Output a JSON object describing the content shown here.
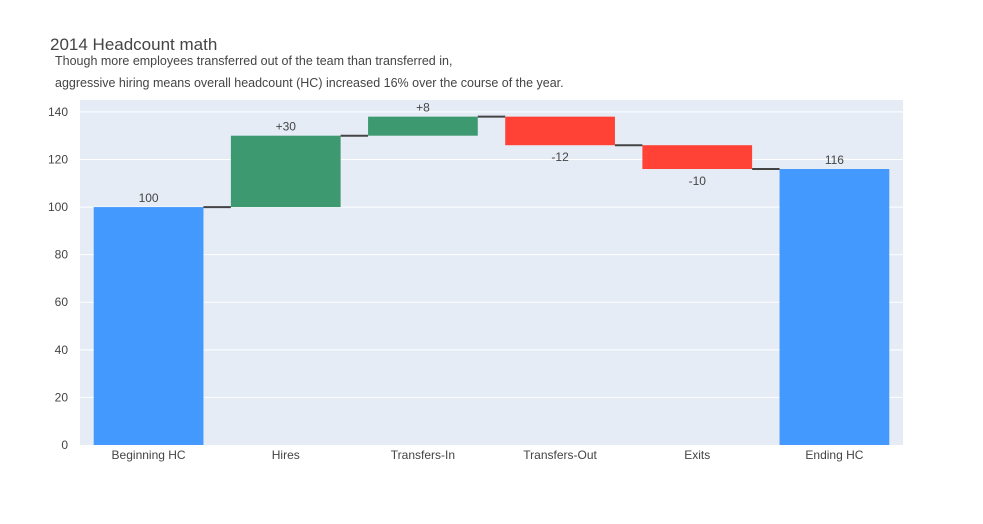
{
  "chart_data": {
    "type": "waterfall",
    "title": "2014 Headcount math",
    "subtitle_lines": [
      "Though more employees transferred out of the team than transferred in,",
      "aggressive hiring means overall headcount (HC) increased 16% over the course of the year."
    ],
    "categories": [
      "Beginning HC",
      "Hires",
      "Transfers-In",
      "Transfers-Out",
      "Exits",
      "Ending HC"
    ],
    "values": [
      100,
      30,
      8,
      -12,
      -10,
      116
    ],
    "measure": [
      "total",
      "relative",
      "relative",
      "relative",
      "relative",
      "total"
    ],
    "labels": [
      "100",
      "+30",
      "+8",
      "-12",
      "-10",
      "116"
    ],
    "ylim": [
      0,
      145
    ],
    "yticks": [
      0,
      20,
      40,
      60,
      80,
      100,
      120,
      140
    ],
    "grid": true,
    "colors": {
      "total": "#4499ff",
      "increase": "#3d9970",
      "decrease": "#ff4136",
      "connector": "#444444",
      "plot_bg": "#e5ecf6",
      "grid": "#ffffff"
    }
  }
}
